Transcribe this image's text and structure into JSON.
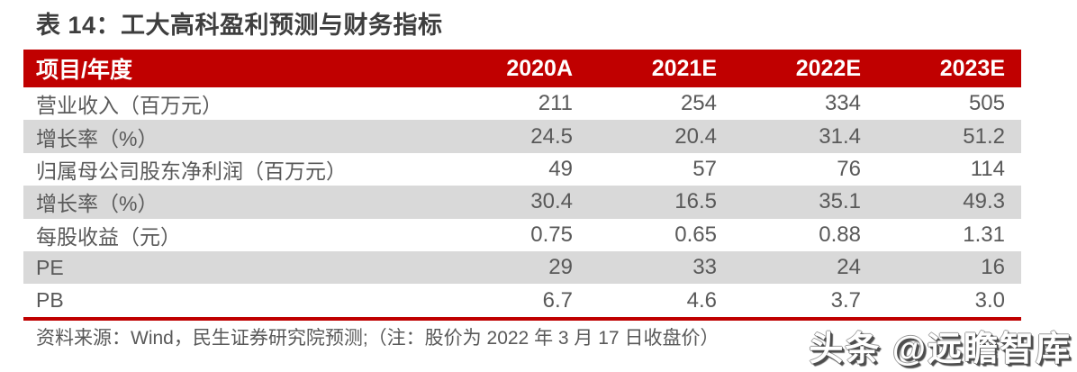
{
  "title": "表 14：工大高科盈利预测与财务指标",
  "table": {
    "header": {
      "label": "项目/年度",
      "years": [
        "2020A",
        "2021E",
        "2022E",
        "2023E"
      ]
    },
    "rows": [
      {
        "label": "营业收入（百万元）",
        "values": [
          "211",
          "254",
          "334",
          "505"
        ]
      },
      {
        "label": "增长率（%）",
        "values": [
          "24.5",
          "20.4",
          "31.4",
          "51.2"
        ]
      },
      {
        "label": "归属母公司股东净利润（百万元）",
        "values": [
          "49",
          "57",
          "76",
          "114"
        ]
      },
      {
        "label": "增长率（%）",
        "values": [
          "30.4",
          "16.5",
          "35.1",
          "49.3"
        ]
      },
      {
        "label": "每股收益（元）",
        "values": [
          "0.75",
          "0.65",
          "0.88",
          "1.31"
        ]
      },
      {
        "label": "PE",
        "values": [
          "29",
          "33",
          "24",
          "16"
        ]
      },
      {
        "label": "PB",
        "values": [
          "6.7",
          "4.6",
          "3.7",
          "3.0"
        ]
      }
    ]
  },
  "footer": {
    "source_note": "资料来源：Wind，民生证券研究院预测;（注：股价为 2022 年 3 月 17 日收盘价）"
  },
  "watermark": {
    "text": "头条 @远瞻智库"
  },
  "colors": {
    "accent_red": "#c00000",
    "stripe_gray": "#d9d9d9",
    "title_text": "#3e3e3e",
    "body_text": "#595959",
    "header_text": "#ffffff"
  }
}
